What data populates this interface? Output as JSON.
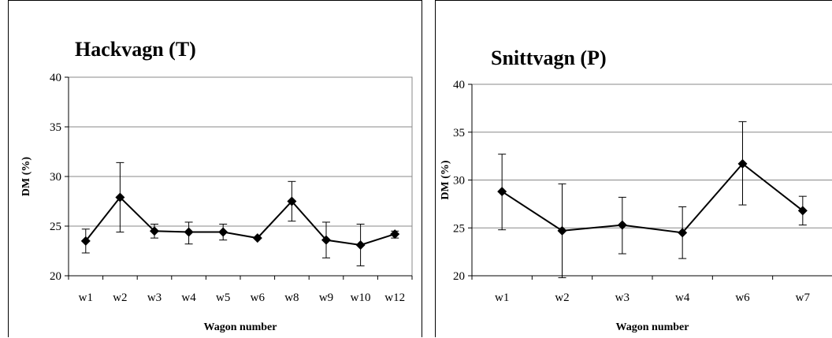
{
  "chart_data": [
    {
      "type": "line",
      "title": "Hackvagn (T)",
      "xlabel": "Wagon number",
      "ylabel": "DM (%)",
      "ylim": [
        20,
        40
      ],
      "yticks": [
        "20",
        "25",
        "30",
        "35",
        "40"
      ],
      "grid": true,
      "categories": [
        "w1",
        "w2",
        "w3",
        "w4",
        "w5",
        "w6",
        "w8",
        "w9",
        "w10",
        "w12"
      ],
      "series": [
        {
          "values": [
            23.5,
            27.9,
            24.5,
            24.4,
            24.4,
            23.8,
            27.5,
            23.6,
            23.1,
            24.2
          ],
          "error_low": [
            22.3,
            24.4,
            23.8,
            23.2,
            23.6,
            23.8,
            25.5,
            21.8,
            21.0,
            23.8
          ],
          "error_high": [
            24.7,
            31.4,
            25.2,
            25.4,
            25.2,
            23.8,
            29.5,
            25.4,
            25.2,
            24.5
          ]
        }
      ],
      "color": "#000000"
    },
    {
      "type": "line",
      "title": "Snittvagn (P)",
      "xlabel": "Wagon number",
      "ylabel": "DM (%)",
      "ylim": [
        20,
        40
      ],
      "yticks": [
        "20",
        "25",
        "30",
        "35",
        "40"
      ],
      "grid": true,
      "categories": [
        "w1",
        "w2",
        "w3",
        "w4",
        "w6",
        "w7"
      ],
      "series": [
        {
          "values": [
            28.8,
            24.7,
            25.3,
            24.5,
            31.7,
            26.8
          ],
          "error_low": [
            24.8,
            19.8,
            22.3,
            21.8,
            27.4,
            25.3
          ],
          "error_high": [
            32.7,
            29.6,
            28.2,
            27.2,
            36.1,
            28.3
          ]
        }
      ],
      "color": "#000000"
    }
  ]
}
